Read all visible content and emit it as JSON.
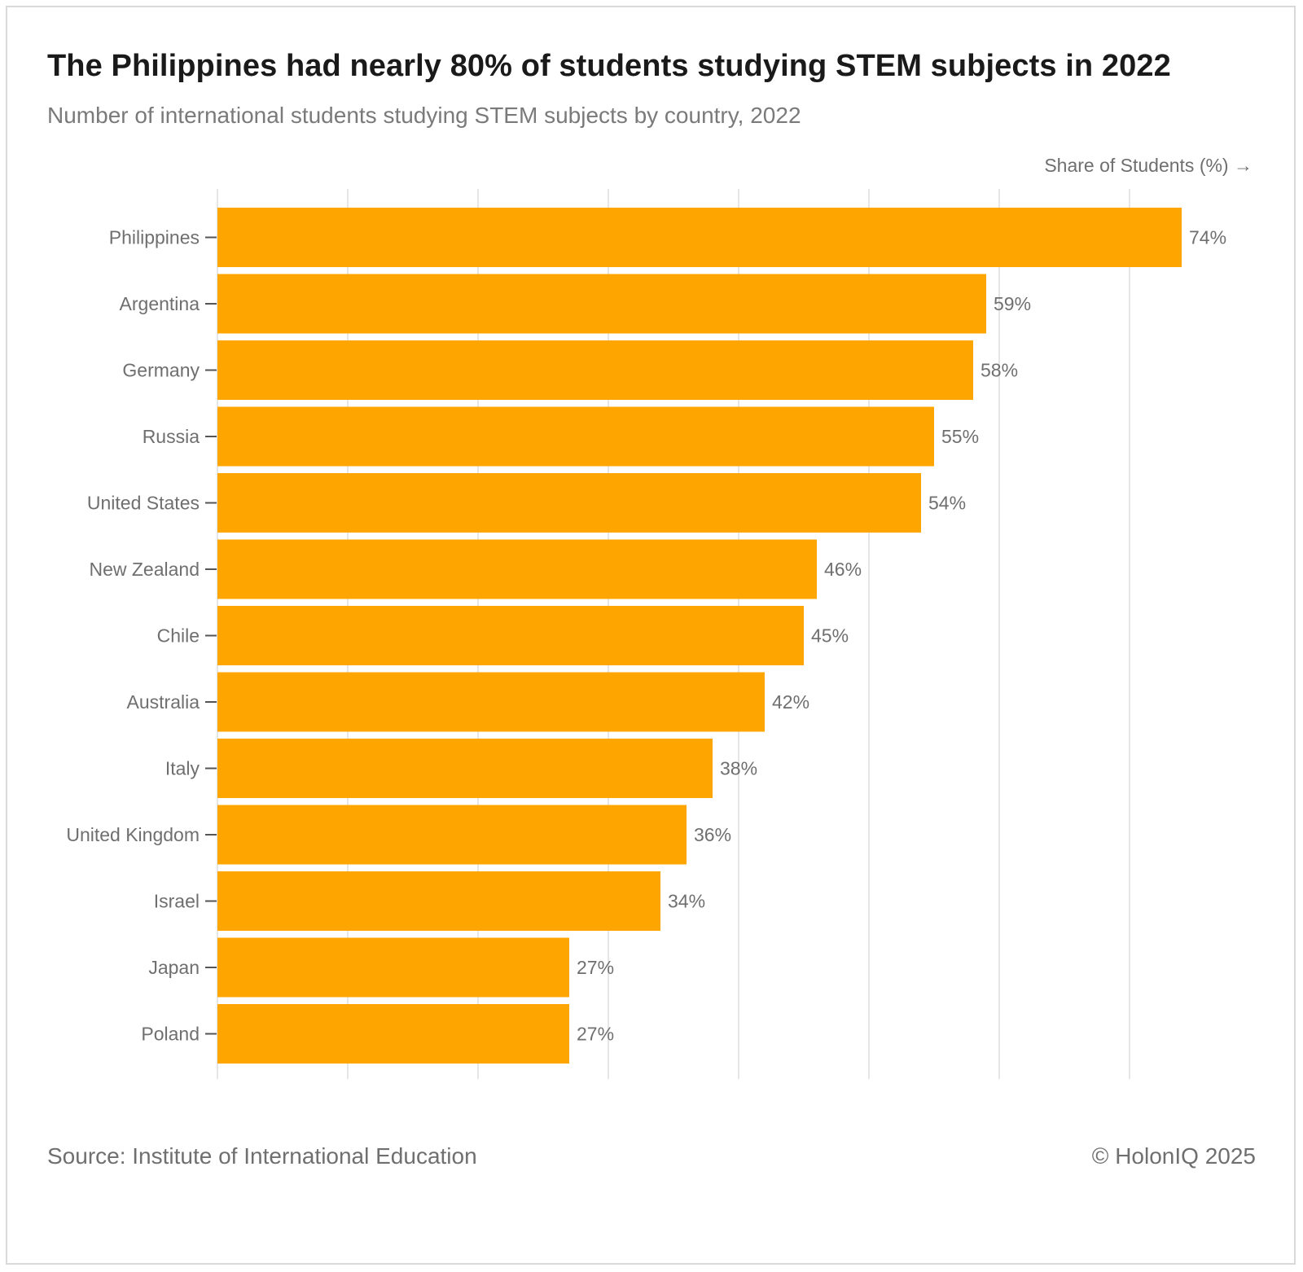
{
  "header": {
    "title": "The Philippines had nearly 80% of students studying STEM subjects in 2022",
    "subtitle": "Number of international students studying STEM subjects by country, 2022"
  },
  "footer": {
    "source": "Source: Institute of International Education",
    "copyright": "© HolonIQ 2025"
  },
  "colors": {
    "bar": "#FFA500",
    "grid": "#e6e6e6",
    "text": "#6f6f6f"
  },
  "chart_data": {
    "type": "bar",
    "orientation": "horizontal",
    "title": "The Philippines had nearly 80% of students studying STEM subjects in 2022",
    "subtitle": "Number of international students studying STEM subjects by country, 2022",
    "xlabel": "Share of Students (%) →",
    "ylabel": "",
    "categories": [
      "Philippines",
      "Argentina",
      "Germany",
      "Russia",
      "United States",
      "New Zealand",
      "Chile",
      "Australia",
      "Italy",
      "United Kingdom",
      "Israel",
      "Japan",
      "Poland"
    ],
    "values": [
      74,
      59,
      58,
      55,
      54,
      46,
      45,
      42,
      38,
      36,
      34,
      27,
      27
    ],
    "value_labels": [
      "74%",
      "59%",
      "58%",
      "55%",
      "54%",
      "46%",
      "45%",
      "42%",
      "38%",
      "36%",
      "34%",
      "27%",
      "27%"
    ],
    "xlim": [
      0,
      80
    ],
    "grid": true,
    "x_tick_labels_shown": false
  }
}
